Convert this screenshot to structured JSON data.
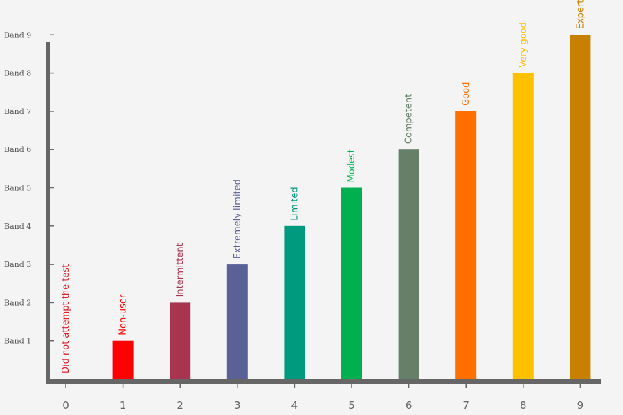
{
  "chart_data": {
    "type": "bar",
    "title": "",
    "xlabel": "",
    "ylabel": "",
    "ylim": [
      0,
      9
    ],
    "grid": false,
    "categories": [
      "0",
      "1",
      "2",
      "3",
      "4",
      "5",
      "6",
      "7",
      "8",
      "9"
    ],
    "values": [
      0,
      1,
      2,
      3,
      4,
      5,
      6,
      7,
      8,
      9
    ],
    "bar_labels": [
      "Did not attempt the test",
      "Non-user",
      "Intermittent",
      "Extremely limited",
      "Limited",
      "Modest",
      "Competent",
      "Good",
      "Very good",
      "Expert"
    ],
    "colors": [
      "#e0202a",
      "#ff0000",
      "#a83550",
      "#5a6196",
      "#009a7e",
      "#00b050",
      "#668068",
      "#ff6f00",
      "#ffc000",
      "#c88000"
    ],
    "y_tick_labels": [
      "Band 1",
      "Band 2",
      "Band 3",
      "Band 4",
      "Band 5",
      "Band 6",
      "Band 7",
      "Band 8",
      "Band 9"
    ],
    "axis_color": "#666666"
  }
}
